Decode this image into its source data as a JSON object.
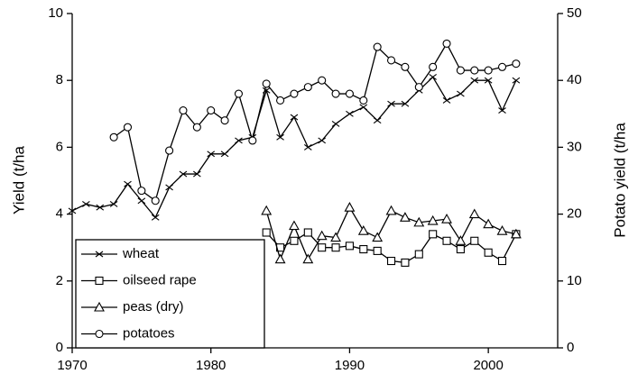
{
  "chart_data": {
    "type": "line",
    "y_label": "Yield (t/ha",
    "y2_label": "Potato yield (t/ha",
    "xlim": [
      1970,
      2005
    ],
    "xticks": [
      1970,
      1980,
      1990,
      2000
    ],
    "ylim": [
      0,
      10
    ],
    "yticks": [
      0,
      2,
      4,
      6,
      8,
      10
    ],
    "y2lim": [
      0,
      50
    ],
    "y2ticks": [
      0,
      10,
      20,
      30,
      40,
      50
    ],
    "legend": "lower left",
    "series": [
      {
        "name": "wheat",
        "color": "#000000",
        "marker": "x",
        "x": [
          1970,
          1971,
          1972,
          1973,
          1974,
          1975,
          1976,
          1977,
          1978,
          1979,
          1980,
          1981,
          1982,
          1983,
          1984,
          1985,
          1986,
          1987,
          1988,
          1989,
          1990,
          1991,
          1992,
          1993,
          1994,
          1995,
          1996,
          1997,
          1998,
          1999,
          2000,
          2001,
          2002
        ],
        "values": [
          4.1,
          4.3,
          4.2,
          4.3,
          4.9,
          4.4,
          3.9,
          4.8,
          5.2,
          5.2,
          5.8,
          5.8,
          6.2,
          6.3,
          7.7,
          6.3,
          6.9,
          6.0,
          6.2,
          6.7,
          7.0,
          7.2,
          6.8,
          7.3,
          7.3,
          7.7,
          8.1,
          7.4,
          7.6,
          8.0,
          8.0,
          7.1,
          8.0
        ]
      },
      {
        "name": "oilseed rape",
        "color": "#000000",
        "marker": "square",
        "x": [
          1984,
          1985,
          1986,
          1987,
          1988,
          1989,
          1990,
          1991,
          1992,
          1993,
          1994,
          1995,
          1996,
          1997,
          1998,
          1999,
          2000,
          2001,
          2002
        ],
        "values": [
          3.45,
          3.0,
          3.2,
          3.45,
          3.0,
          3.0,
          3.05,
          2.95,
          2.9,
          2.6,
          2.55,
          2.8,
          3.4,
          3.2,
          2.95,
          3.2,
          2.85,
          2.6,
          3.4
        ]
      },
      {
        "name": "peas (dry)",
        "color": "#000000",
        "marker": "triangle",
        "x": [
          1984,
          1985,
          1986,
          1987,
          1988,
          1989,
          1990,
          1991,
          1992,
          1993,
          1994,
          1995,
          1996,
          1997,
          1998,
          1999,
          2000,
          2001,
          2002
        ],
        "values": [
          4.1,
          2.65,
          3.65,
          2.65,
          3.35,
          3.3,
          4.2,
          3.5,
          3.3,
          4.1,
          3.9,
          3.75,
          3.8,
          3.85,
          3.2,
          4.0,
          3.7,
          3.5,
          3.4
        ]
      },
      {
        "name": "potatoes",
        "color": "#000000",
        "marker": "circle",
        "axis": "y2",
        "x": [
          1973,
          1974,
          1975,
          1976,
          1977,
          1978,
          1979,
          1980,
          1981,
          1982,
          1983,
          1984,
          1985,
          1986,
          1987,
          1988,
          1989,
          1990,
          1991,
          1992,
          1993,
          1994,
          1995,
          1996,
          1997,
          1998,
          1999,
          2000,
          2001,
          2002
        ],
        "values": [
          31.5,
          33,
          23.5,
          22,
          29.5,
          35.5,
          33,
          35.5,
          34,
          38,
          31,
          39.5,
          37,
          38,
          39,
          40,
          38,
          38,
          37,
          45,
          43,
          42,
          39,
          42,
          45.5,
          41.5,
          41.5,
          41.5,
          42,
          42.5
        ]
      }
    ]
  }
}
